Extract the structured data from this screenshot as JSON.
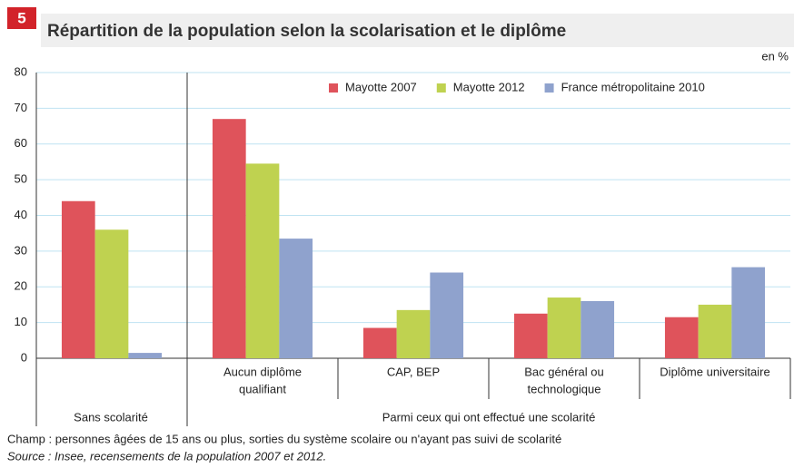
{
  "chart_data": {
    "type": "bar",
    "badge": "5",
    "title": "Répartition de la population selon la scolarisation et le diplôme",
    "unit": "en %",
    "categories": [
      [
        "Sans scolarité"
      ],
      [
        "Aucun diplôme",
        "qualifiant"
      ],
      [
        "CAP, BEP"
      ],
      [
        "Bac général ou",
        "technologique"
      ],
      [
        "Diplôme universitaire"
      ]
    ],
    "groups": [
      "Sans scolarité",
      "Parmi ceux qui ont effectué une scolarité"
    ],
    "series": [
      {
        "name": "Mayotte 2007",
        "color": "#df535b",
        "values": [
          44,
          67,
          8.5,
          12.5,
          11.5
        ]
      },
      {
        "name": "Mayotte 2012",
        "color": "#bfd250",
        "values": [
          36,
          54.5,
          13.5,
          17,
          15
        ]
      },
      {
        "name": "France métropolitaine 2010",
        "color": "#8fa2cd",
        "values": [
          1.5,
          33.5,
          24,
          16,
          25.5
        ]
      }
    ],
    "ylim": [
      0,
      80
    ],
    "yticks": [
      0,
      10,
      20,
      30,
      40,
      50,
      60,
      70,
      80
    ],
    "grid": true,
    "notes": [
      "Champ : personnes âgées de 15 ans ou plus, sorties du système scolaire ou n'ayant pas suivi de scolarité",
      "Source : Insee, recensements de la population 2007 et 2012."
    ]
  }
}
